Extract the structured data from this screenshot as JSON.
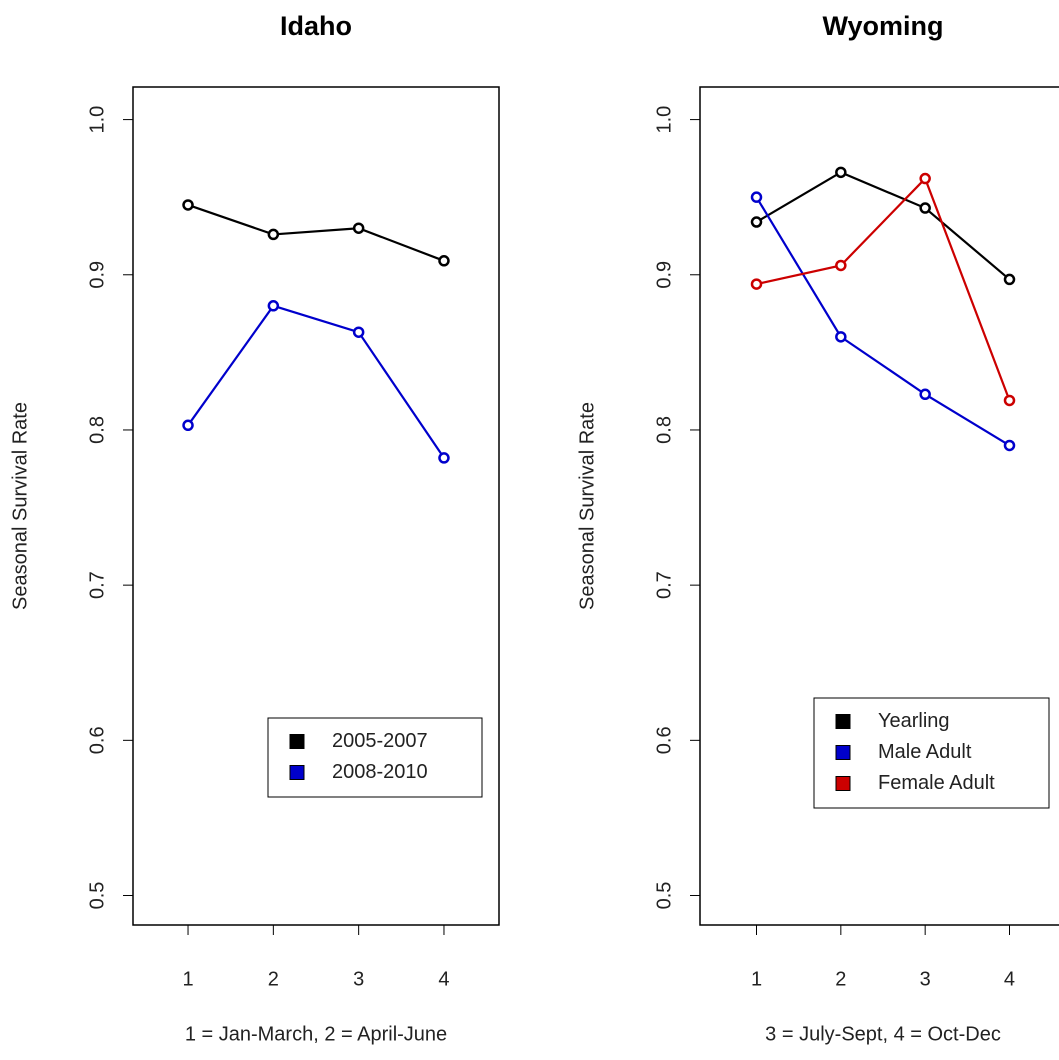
{
  "chart_data": [
    {
      "type": "line",
      "title": "Idaho",
      "y_label": "Seasonal Survival Rate",
      "x_label": "1 = Jan-March,  2 = April-June",
      "x": [
        1,
        2,
        3,
        4
      ],
      "xlim": [
        0.355,
        4.645
      ],
      "xticks": [
        1,
        2,
        3,
        4
      ],
      "ylim": [
        0.481,
        1.021
      ],
      "yticks": [
        0.5,
        0.6,
        0.7,
        0.8,
        0.9,
        {
          "value": 1,
          "label": "1.0"
        }
      ],
      "legend": "bottom-right",
      "series": [
        {
          "name": "2005-2007",
          "color": "#000000",
          "values": [
            0.945,
            0.926,
            0.93,
            0.909
          ]
        },
        {
          "name": "2008-2010",
          "color": "#0000cc",
          "values": [
            0.803,
            0.88,
            0.863,
            0.782
          ]
        }
      ]
    },
    {
      "type": "line",
      "title": "Wyoming",
      "y_label": "Seasonal Survival Rate",
      "x_label": "3 = July-Sept,  4 = Oct-Dec",
      "x": [
        1,
        2,
        3,
        4
      ],
      "xlim": [
        0.33,
        4.67
      ],
      "xticks": [
        1,
        2,
        3,
        4
      ],
      "ylim": [
        0.481,
        1.021
      ],
      "yticks": [
        0.5,
        0.6,
        0.7,
        0.8,
        0.9,
        {
          "value": 1,
          "label": "1.0"
        }
      ],
      "legend": "bottom-right",
      "series": [
        {
          "name": "Yearling",
          "color": "#000000",
          "values": [
            0.934,
            0.966,
            0.943,
            0.897
          ]
        },
        {
          "name": "Male Adult",
          "color": "#0000cc",
          "values": [
            0.95,
            0.86,
            0.823,
            0.79
          ]
        },
        {
          "name": "Female Adult",
          "color": "#cc0000",
          "values": [
            0.894,
            0.906,
            0.962,
            0.819
          ]
        }
      ]
    }
  ]
}
